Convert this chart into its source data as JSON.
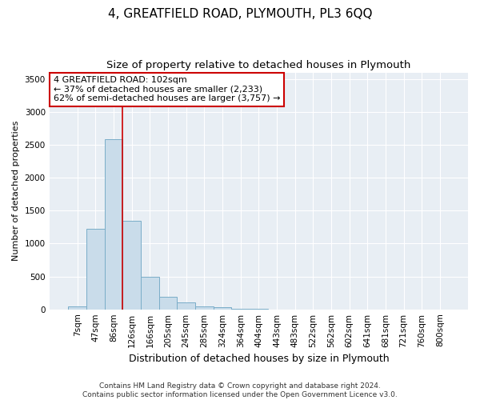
{
  "title": "4, GREATFIELD ROAD, PLYMOUTH, PL3 6QQ",
  "subtitle": "Size of property relative to detached houses in Plymouth",
  "xlabel": "Distribution of detached houses by size in Plymouth",
  "ylabel": "Number of detached properties",
  "bar_color": "#c9dcea",
  "bar_edgecolor": "#7aadc8",
  "vline_color": "#cc0000",
  "categories": [
    "7sqm",
    "47sqm",
    "86sqm",
    "126sqm",
    "166sqm",
    "205sqm",
    "245sqm",
    "285sqm",
    "324sqm",
    "364sqm",
    "404sqm",
    "443sqm",
    "483sqm",
    "522sqm",
    "562sqm",
    "602sqm",
    "641sqm",
    "681sqm",
    "721sqm",
    "760sqm",
    "800sqm"
  ],
  "values": [
    50,
    1230,
    2580,
    1350,
    490,
    185,
    100,
    50,
    30,
    10,
    3,
    0,
    0,
    0,
    0,
    0,
    0,
    0,
    0,
    0,
    0
  ],
  "vline_pos": 2.5,
  "ylim": [
    0,
    3600
  ],
  "yticks": [
    0,
    500,
    1000,
    1500,
    2000,
    2500,
    3000,
    3500
  ],
  "annotation_line1": "4 GREATFIELD ROAD: 102sqm",
  "annotation_line2": "← 37% of detached houses are smaller (2,233)",
  "annotation_line3": "62% of semi-detached houses are larger (3,757) →",
  "annotation_box_edgecolor": "#cc0000",
  "plot_bg_color": "#e8eef4",
  "fig_bg_color": "#ffffff",
  "grid_color": "#ffffff",
  "footer_line1": "Contains HM Land Registry data © Crown copyright and database right 2024.",
  "footer_line2": "Contains public sector information licensed under the Open Government Licence v3.0.",
  "title_fontsize": 11,
  "subtitle_fontsize": 9.5,
  "xlabel_fontsize": 9,
  "ylabel_fontsize": 8,
  "tick_fontsize": 7.5,
  "annotation_fontsize": 8,
  "footer_fontsize": 6.5
}
